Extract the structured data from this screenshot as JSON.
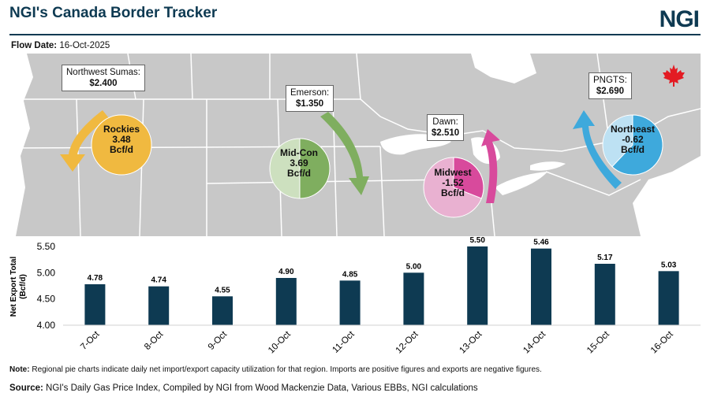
{
  "header": {
    "title": "NGI's Canada Border Tracker",
    "logo": "NGI"
  },
  "flow_date": {
    "label": "Flow Date:",
    "value": "16-Oct-2025"
  },
  "map": {
    "callouts": [
      {
        "name": "Northwest Sumas:",
        "price": "$2.400"
      },
      {
        "name": "Emerson:",
        "price": "$1.350"
      },
      {
        "name": "Dawn:",
        "price": "$2.510"
      },
      {
        "name": "PNGTS:",
        "price": "$2.690"
      }
    ],
    "regions": [
      {
        "name": "Rockies",
        "value": "3.48",
        "unit": "Bcf/d",
        "utilization": 1.0,
        "color_main": "#f0b940",
        "color_light": "#f6e1a6"
      },
      {
        "name": "Mid-Con",
        "value": "3.69",
        "unit": "Bcf/d",
        "utilization": 0.5,
        "color_main": "#7fae5f",
        "color_light": "#cde0bf"
      },
      {
        "name": "Midwest",
        "value": "-1.52",
        "unit": "Bcf/d",
        "utilization": 0.31,
        "color_main": "#d84a9c",
        "color_light": "#e9b1d1"
      },
      {
        "name": "Northeast",
        "value": "-0.62",
        "unit": "Bcf/d",
        "utilization": 0.62,
        "color_main": "#3ea9dc",
        "color_light": "#bde1f3"
      }
    ],
    "flag_icon": "maple-leaf-icon",
    "colors": {
      "land": "#c8c8c8",
      "border": "#ffffff",
      "water": "#ffffff"
    }
  },
  "chart_data": {
    "type": "bar",
    "categories": [
      "7-Oct",
      "8-Oct",
      "9-Oct",
      "10-Oct",
      "11-Oct",
      "12-Oct",
      "13-Oct",
      "14-Oct",
      "15-Oct",
      "16-Oct"
    ],
    "values": [
      4.78,
      4.74,
      4.55,
      4.9,
      4.85,
      5.0,
      5.5,
      5.46,
      5.17,
      5.03
    ],
    "value_labels": [
      "4.78",
      "4.74",
      "4.55",
      "4.90",
      "4.85",
      "5.00",
      "5.50",
      "5.46",
      "5.17",
      "5.03"
    ],
    "ylabel": [
      "Net Export Total",
      "(Bcf/d)"
    ],
    "ylim": [
      4.0,
      5.5
    ],
    "yticks": [
      "4.00",
      "4.50",
      "5.00",
      "5.50"
    ],
    "ytick_values": [
      4.0,
      4.5,
      5.0,
      5.5
    ],
    "bar_color": "#0e3a52",
    "grid": false
  },
  "footer": {
    "note_label": "Note:",
    "note_text": " Regional pie charts indicate daily net import/export capacity utilization for that region. Imports are positive figures and exports are negative figures.",
    "source_label": "Source:",
    "source_text": " NGI's Daily Gas Price Index, Compiled by NGI from Wood Mackenzie Data, Various EBBs, NGI calculations"
  }
}
